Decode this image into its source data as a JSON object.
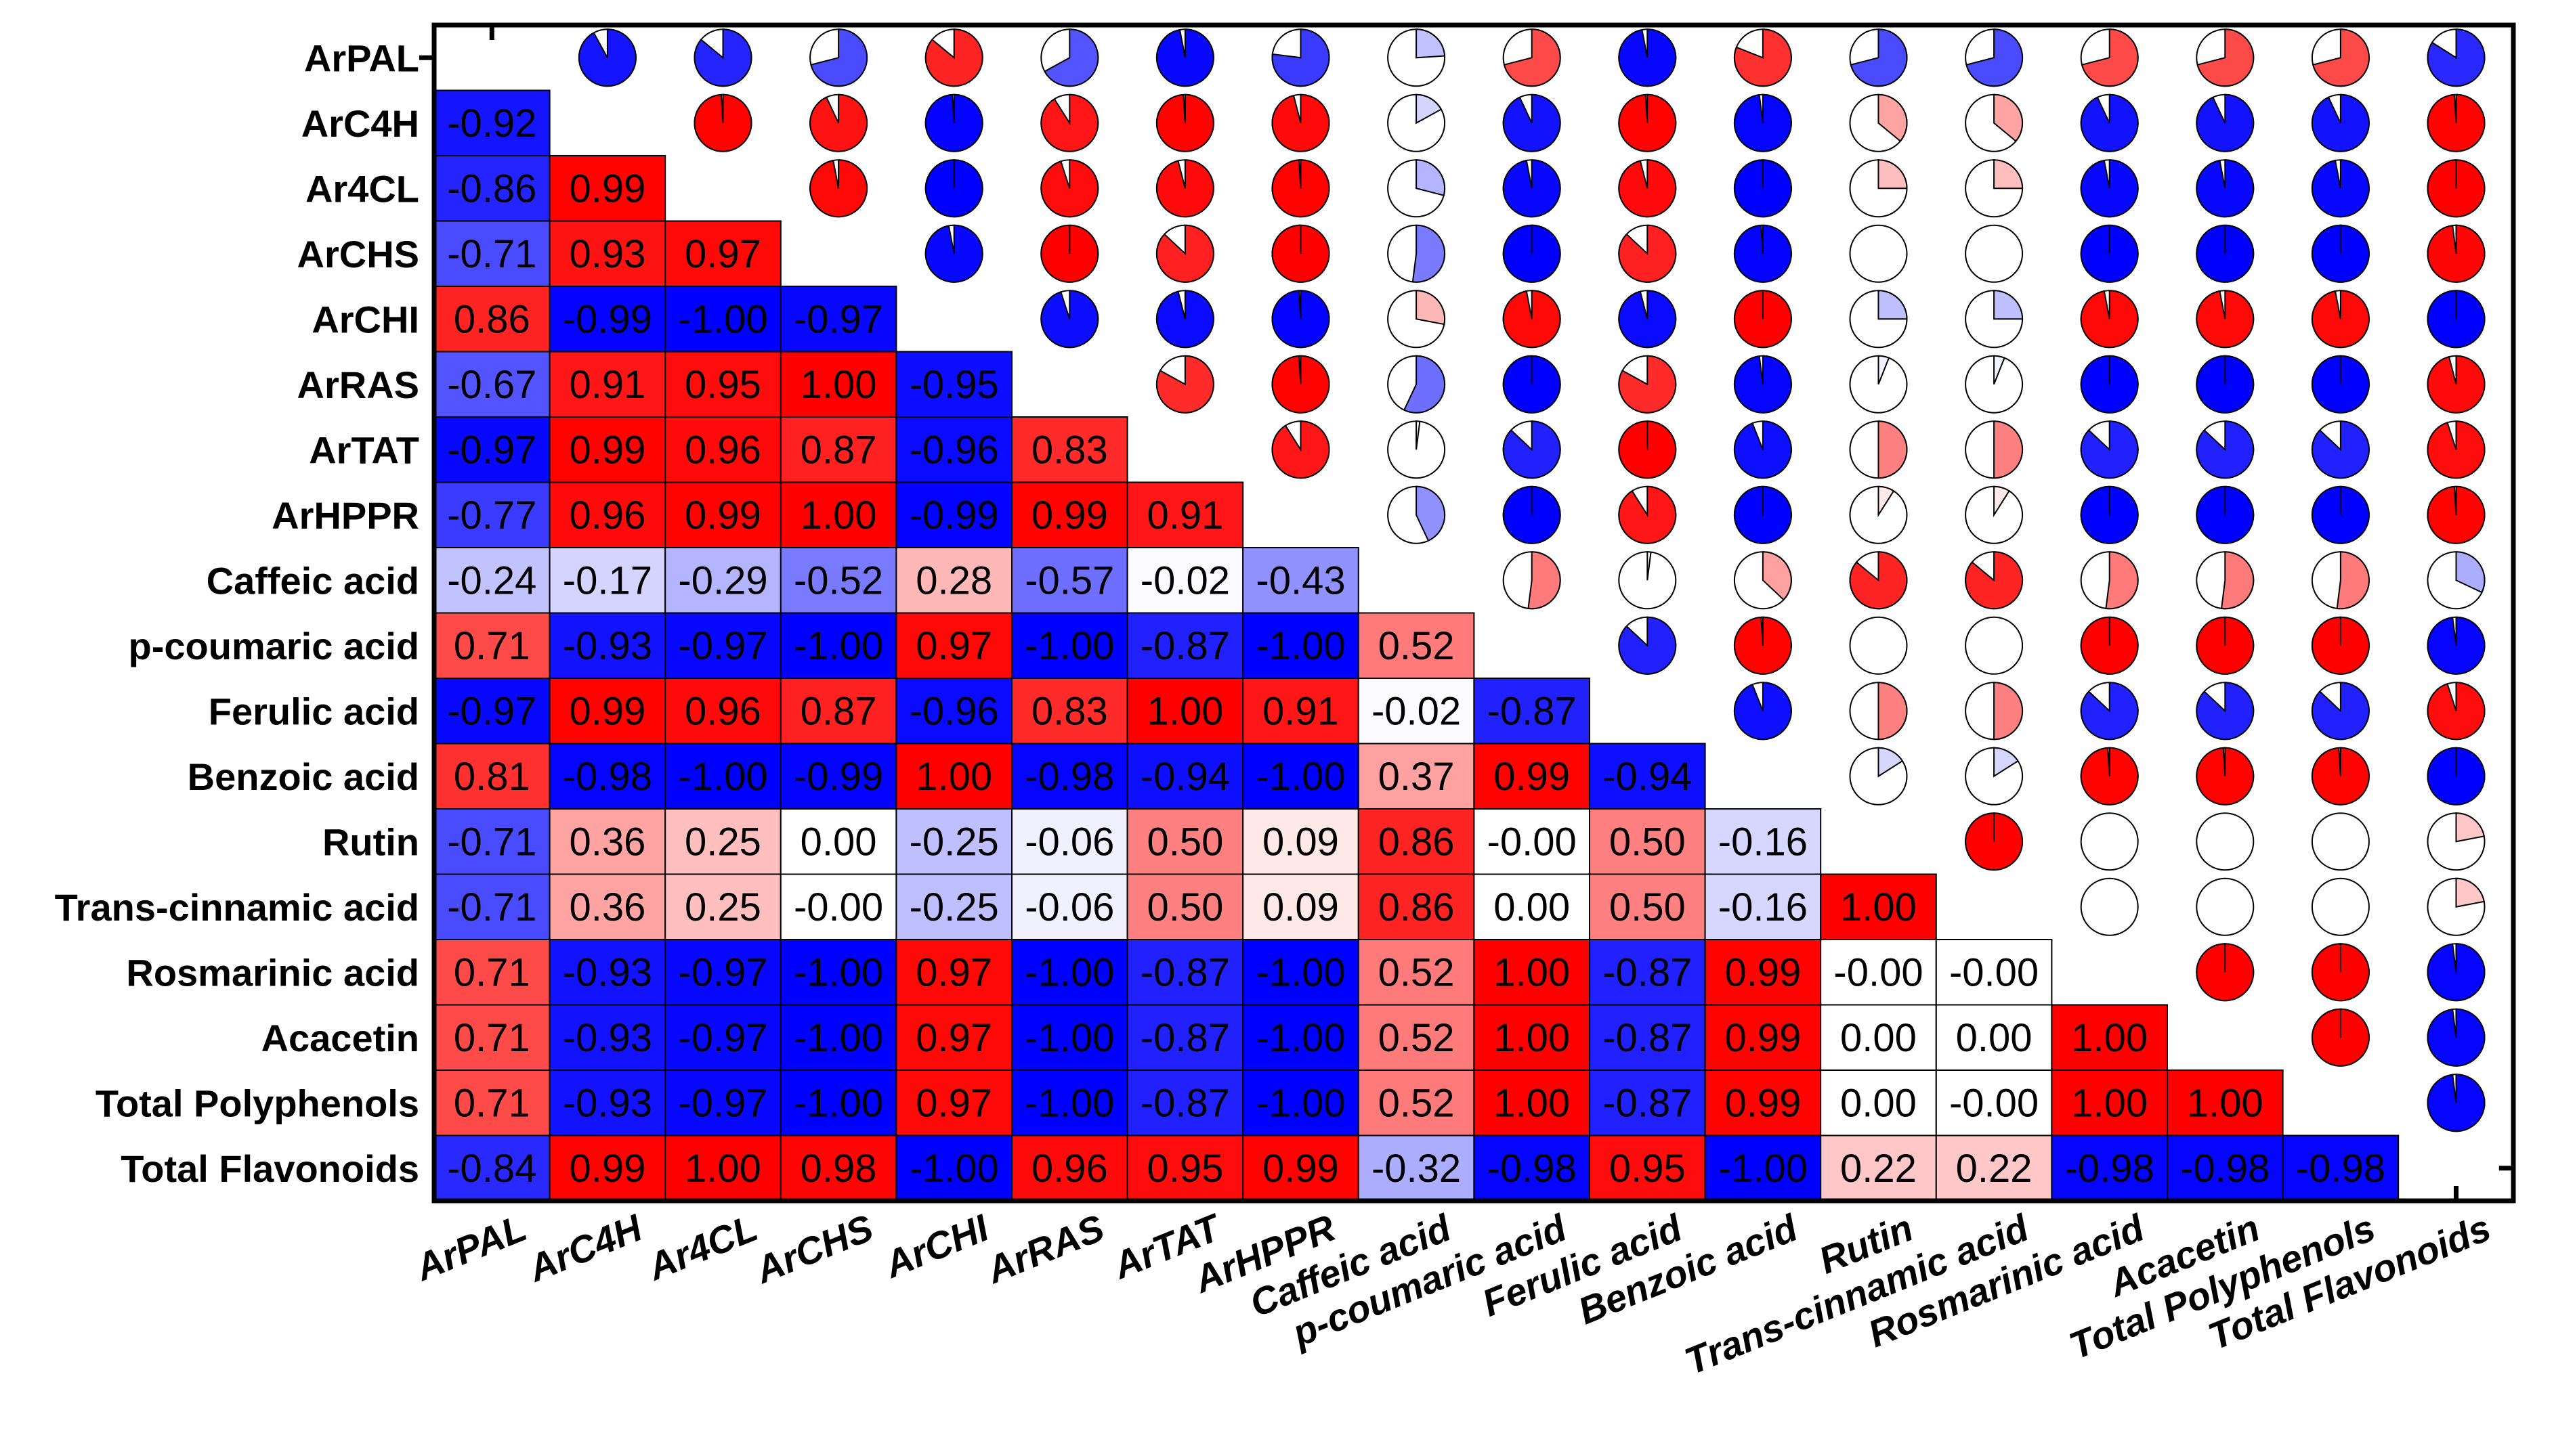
{
  "chart_data": {
    "type": "heatmap",
    "subtype": "correlation-matrix-lower-heatmap-upper-pie",
    "title": "",
    "labels": [
      "ArPAL",
      "ArC4H",
      "Ar4CL",
      "ArCHS",
      "ArCHI",
      "ArRAS",
      "ArTAT",
      "ArHPPR",
      "Caffeic acid",
      "p-coumaric acid",
      "Ferulic acid",
      "Benzoic acid",
      "Rutin",
      "Trans-cinnamic acid",
      "Rosmarinic acid",
      "Acacetin",
      "Total Polyphenols",
      "Total Flavonoids"
    ],
    "lower_values": [
      [],
      [
        "-0.92"
      ],
      [
        "-0.86",
        "0.99"
      ],
      [
        "-0.71",
        "0.93",
        "0.97"
      ],
      [
        "0.86",
        "-0.99",
        "-1.00",
        "-0.97"
      ],
      [
        "-0.67",
        "0.91",
        "0.95",
        "1.00",
        "-0.95"
      ],
      [
        "-0.97",
        "0.99",
        "0.96",
        "0.87",
        "-0.96",
        "0.83"
      ],
      [
        "-0.77",
        "0.96",
        "0.99",
        "1.00",
        "-0.99",
        "0.99",
        "0.91"
      ],
      [
        "-0.24",
        "-0.17",
        "-0.29",
        "-0.52",
        "0.28",
        "-0.57",
        "-0.02",
        "-0.43"
      ],
      [
        "0.71",
        "-0.93",
        "-0.97",
        "-1.00",
        "0.97",
        "-1.00",
        "-0.87",
        "-1.00",
        "0.52"
      ],
      [
        "-0.97",
        "0.99",
        "0.96",
        "0.87",
        "-0.96",
        "0.83",
        "1.00",
        "0.91",
        "-0.02",
        "-0.87"
      ],
      [
        "0.81",
        "-0.98",
        "-1.00",
        "-0.99",
        "1.00",
        "-0.98",
        "-0.94",
        "-1.00",
        "0.37",
        "0.99",
        "-0.94"
      ],
      [
        "-0.71",
        "0.36",
        "0.25",
        "0.00",
        "-0.25",
        "-0.06",
        "0.50",
        "0.09",
        "0.86",
        "-0.00",
        "0.50",
        "-0.16"
      ],
      [
        "-0.71",
        "0.36",
        "0.25",
        "-0.00",
        "-0.25",
        "-0.06",
        "0.50",
        "0.09",
        "0.86",
        "0.00",
        "0.50",
        "-0.16",
        "1.00"
      ],
      [
        "0.71",
        "-0.93",
        "-0.97",
        "-1.00",
        "0.97",
        "-1.00",
        "-0.87",
        "-1.00",
        "0.52",
        "1.00",
        "-0.87",
        "0.99",
        "-0.00",
        "-0.00"
      ],
      [
        "0.71",
        "-0.93",
        "-0.97",
        "-1.00",
        "0.97",
        "-1.00",
        "-0.87",
        "-1.00",
        "0.52",
        "1.00",
        "-0.87",
        "0.99",
        "0.00",
        "0.00",
        "1.00"
      ],
      [
        "0.71",
        "-0.93",
        "-0.97",
        "-1.00",
        "0.97",
        "-1.00",
        "-0.87",
        "-1.00",
        "0.52",
        "1.00",
        "-0.87",
        "0.99",
        "0.00",
        "-0.00",
        "1.00",
        "1.00"
      ],
      [
        "-0.84",
        "0.99",
        "1.00",
        "0.98",
        "-1.00",
        "0.96",
        "0.95",
        "0.99",
        "-0.32",
        "-0.98",
        "0.95",
        "-1.00",
        "0.22",
        "0.22",
        "-0.98",
        "-0.98",
        "-0.98"
      ]
    ],
    "upper_display": "pie fraction = |r|, red = positive, blue = negative",
    "color_scale": {
      "negative": "#0000ff",
      "zero": "#ffffff",
      "positive": "#ff0000",
      "range": [
        -1,
        1
      ]
    }
  }
}
